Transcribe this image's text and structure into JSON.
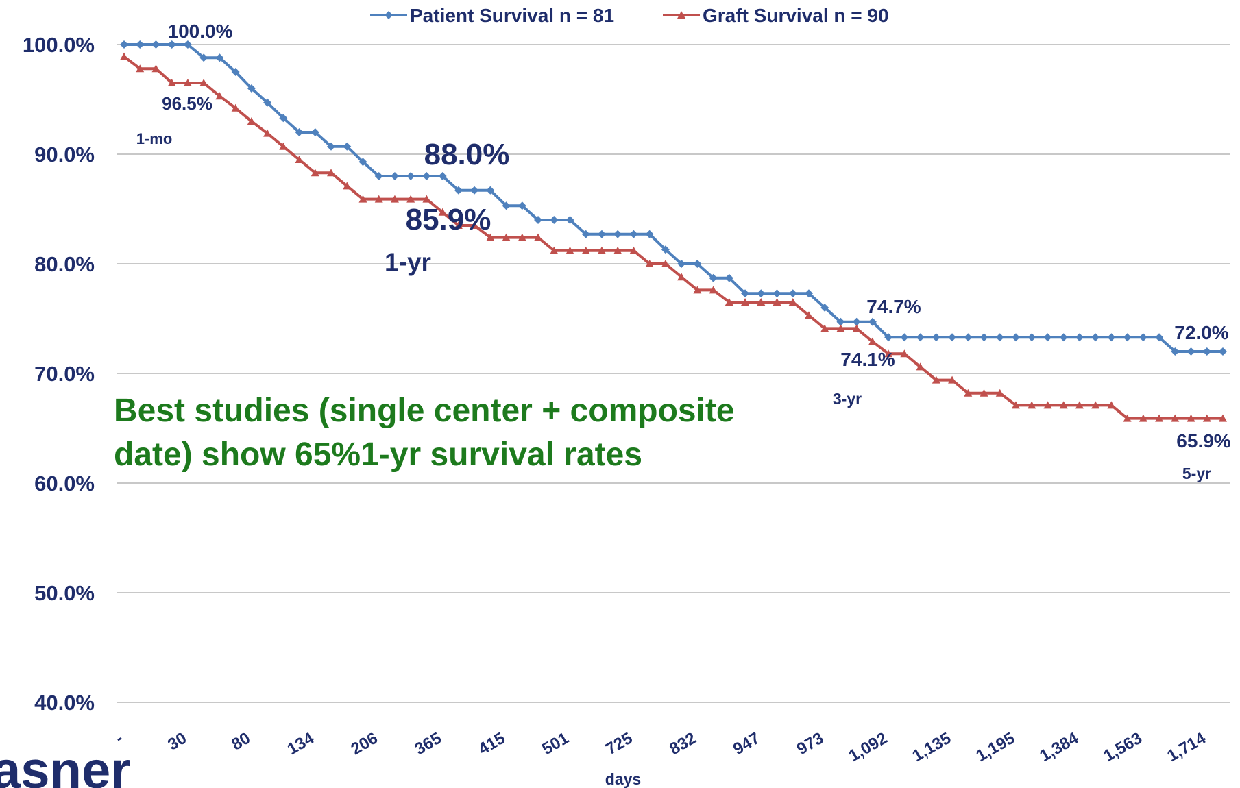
{
  "chart_data": {
    "type": "line",
    "legend": "top",
    "x_label": "days",
    "logo": "asner",
    "categories": [
      "-",
      null,
      null,
      null,
      "30",
      null,
      null,
      null,
      "80",
      null,
      null,
      null,
      "134",
      null,
      null,
      null,
      "206",
      null,
      null,
      null,
      "365",
      null,
      null,
      null,
      "415",
      null,
      null,
      null,
      "501",
      null,
      null,
      null,
      "725",
      null,
      null,
      null,
      "832",
      null,
      null,
      null,
      "947",
      null,
      null,
      null,
      "973",
      null,
      null,
      null,
      "1,092",
      null,
      null,
      null,
      "1,135",
      null,
      null,
      null,
      "1,195",
      null,
      null,
      null,
      "1,384",
      null,
      null,
      null,
      "1,563",
      null,
      null,
      null,
      "1,714",
      null
    ],
    "series": [
      {
        "name": "Patient Survival n = 81",
        "color": "#4f81bd",
        "marker": "diamond",
        "values": [
          100,
          100,
          100,
          100,
          100,
          98.8,
          98.8,
          97.5,
          96.0,
          94.7,
          93.3,
          92.0,
          92.0,
          90.7,
          90.7,
          89.3,
          88.0,
          88.0,
          88.0,
          88.0,
          88.0,
          86.7,
          86.7,
          86.7,
          85.3,
          85.3,
          84.0,
          84.0,
          84.0,
          82.7,
          82.7,
          82.7,
          82.7,
          82.7,
          81.3,
          80.0,
          80.0,
          78.7,
          78.7,
          77.3,
          77.3,
          77.3,
          77.3,
          77.3,
          76.0,
          74.7,
          74.7,
          74.7,
          73.3,
          73.3,
          73.3,
          73.3,
          73.3,
          73.3,
          73.3,
          73.3,
          73.3,
          73.3,
          73.3,
          73.3,
          73.3,
          73.3,
          73.3,
          73.3,
          73.3,
          73.3,
          72.0,
          72.0,
          72.0,
          72.0
        ]
      },
      {
        "name": "Graft Survival n = 90",
        "color": "#c0504d",
        "marker": "triangle",
        "values": [
          98.9,
          97.8,
          97.8,
          96.5,
          96.5,
          96.5,
          95.3,
          94.2,
          93.0,
          91.9,
          90.7,
          89.5,
          88.3,
          88.3,
          87.1,
          85.9,
          85.9,
          85.9,
          85.9,
          85.9,
          84.7,
          83.5,
          83.5,
          82.4,
          82.4,
          82.4,
          82.4,
          81.2,
          81.2,
          81.2,
          81.2,
          81.2,
          81.2,
          80.0,
          80.0,
          78.8,
          77.6,
          77.6,
          76.5,
          76.5,
          76.5,
          76.5,
          76.5,
          75.3,
          74.1,
          74.1,
          74.1,
          72.9,
          71.8,
          71.8,
          70.6,
          69.4,
          69.4,
          68.2,
          68.2,
          68.2,
          67.1,
          67.1,
          67.1,
          67.1,
          67.1,
          67.1,
          67.1,
          65.9,
          65.9,
          65.9,
          65.9,
          65.9,
          65.9,
          65.9
        ]
      }
    ],
    "ylim": [
      40,
      100
    ],
    "yticks": [
      {
        "value": 40,
        "label": "40.0%"
      },
      {
        "value": 50,
        "label": "50.0%"
      },
      {
        "value": 60,
        "label": "60.0%"
      },
      {
        "value": 70,
        "label": "70.0%"
      },
      {
        "value": 80,
        "label": "80.0%"
      },
      {
        "value": 90,
        "label": "90.0%"
      },
      {
        "value": 100,
        "label": "100.0%"
      }
    ],
    "grid": true,
    "annotations": [
      "100.0%",
      "96.5%",
      "1-mo",
      "88.0%",
      "85.9%",
      "1-yr",
      "74.7%",
      "74.1%",
      "3-yr",
      "72.0%",
      "65.9%",
      "5-yr"
    ],
    "note": [
      "Best studies (single center + composite",
      "date) show 65%1-yr survival rates"
    ]
  }
}
